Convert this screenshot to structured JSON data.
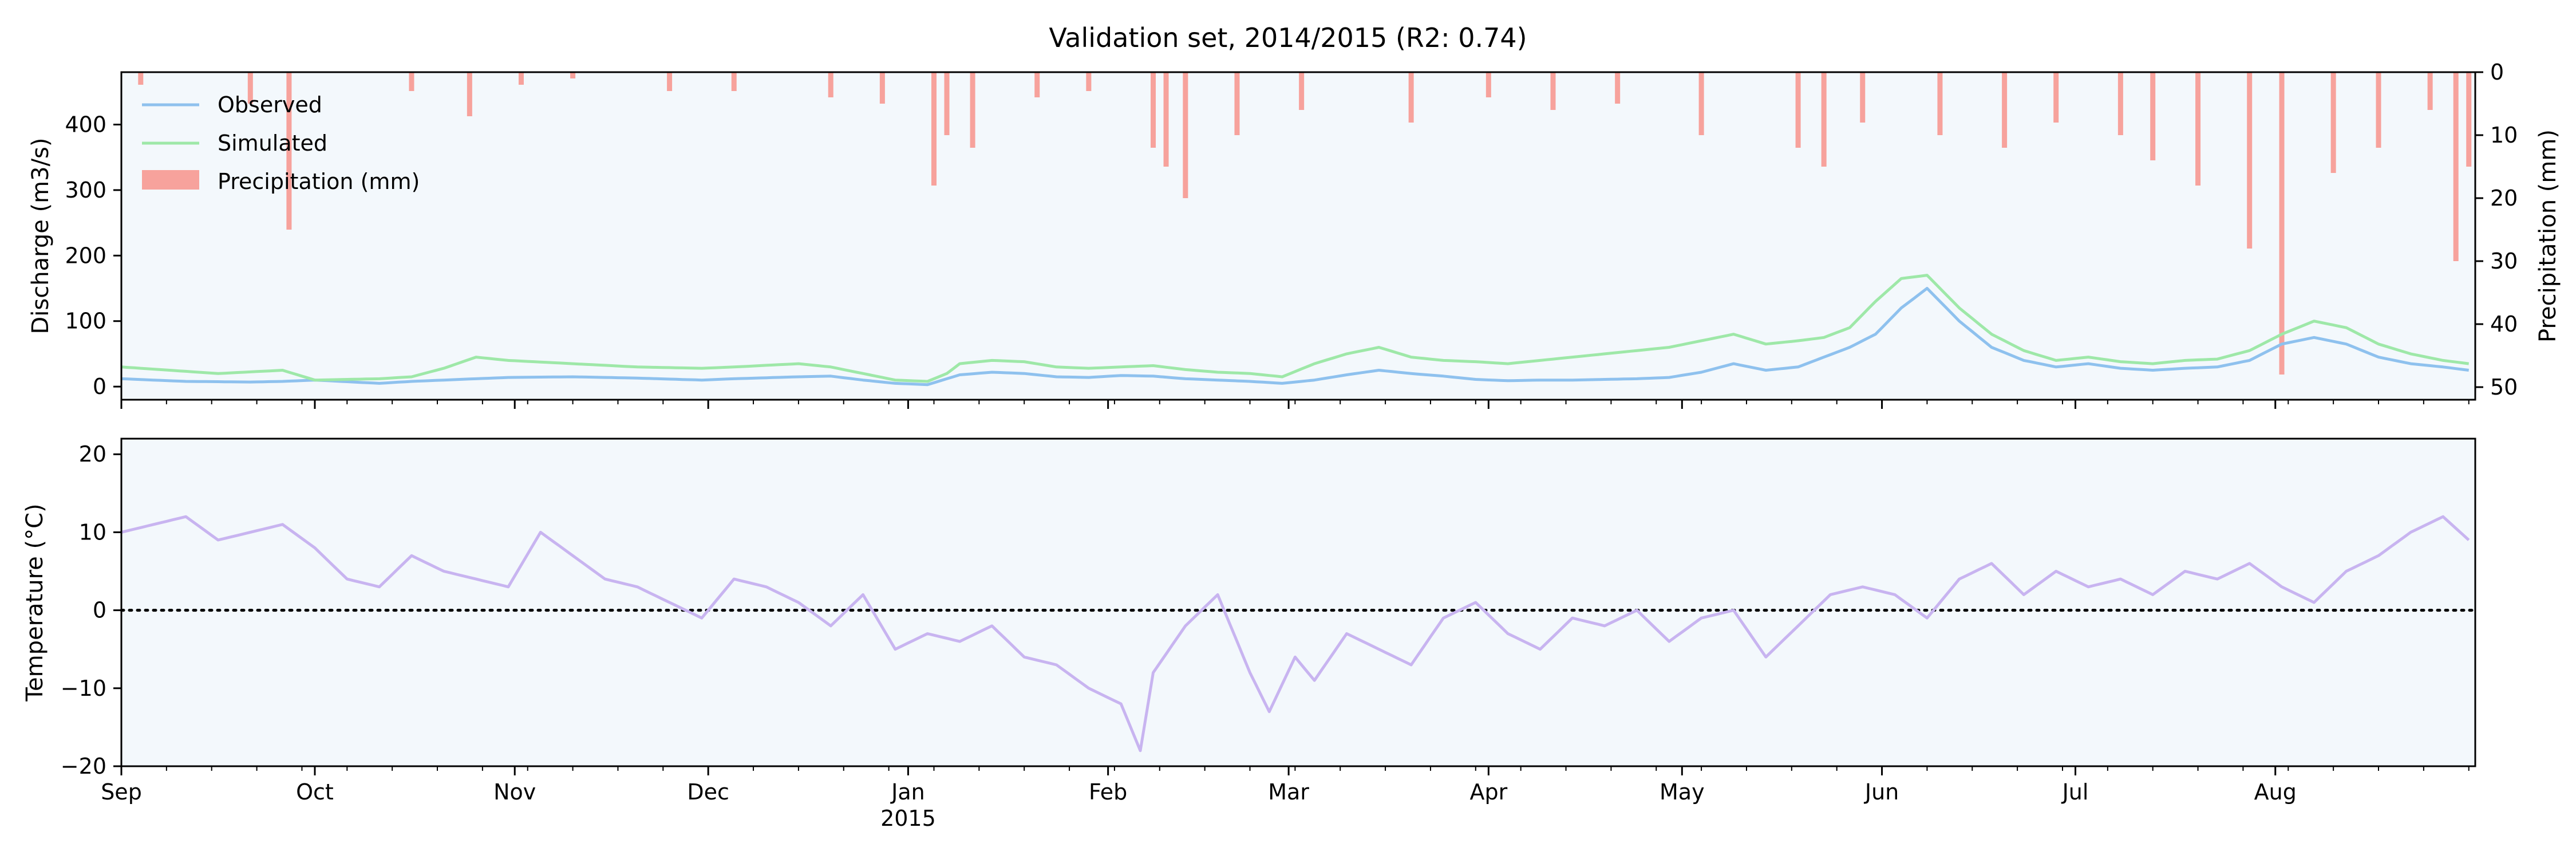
{
  "chart_data": [
    {
      "type": "line",
      "panel": "discharge",
      "title": "Validation set, 2014/2015 (R2: 0.74)",
      "ylabel": "Discharge (m3/s)",
      "ylim": [
        -20,
        480
      ],
      "yticks": [
        0,
        100,
        200,
        300,
        400
      ],
      "xlim_days": [
        0,
        364
      ],
      "x_start_date": "2014-09-01",
      "series": [
        {
          "name": "Observed",
          "color": "#8ec1ee",
          "key_points": [
            [
              0,
              12
            ],
            [
              10,
              8
            ],
            [
              20,
              7
            ],
            [
              25,
              8
            ],
            [
              30,
              10
            ],
            [
              40,
              5
            ],
            [
              45,
              8
            ],
            [
              50,
              10
            ],
            [
              55,
              12
            ],
            [
              60,
              14
            ],
            [
              70,
              15
            ],
            [
              80,
              13
            ],
            [
              90,
              10
            ],
            [
              95,
              12
            ],
            [
              105,
              15
            ],
            [
              110,
              16
            ],
            [
              115,
              10
            ],
            [
              120,
              5
            ],
            [
              125,
              3
            ],
            [
              128,
              12
            ],
            [
              130,
              18
            ],
            [
              135,
              22
            ],
            [
              140,
              20
            ],
            [
              145,
              15
            ],
            [
              150,
              14
            ],
            [
              155,
              17
            ],
            [
              160,
              16
            ],
            [
              165,
              12
            ],
            [
              170,
              10
            ],
            [
              175,
              8
            ],
            [
              180,
              5
            ],
            [
              185,
              10
            ],
            [
              190,
              18
            ],
            [
              195,
              25
            ],
            [
              200,
              20
            ],
            [
              205,
              16
            ],
            [
              210,
              11
            ],
            [
              215,
              9
            ],
            [
              220,
              10
            ],
            [
              225,
              10
            ],
            [
              230,
              11
            ],
            [
              235,
              12
            ],
            [
              240,
              14
            ],
            [
              245,
              22
            ],
            [
              250,
              35
            ],
            [
              255,
              25
            ],
            [
              260,
              30
            ],
            [
              264,
              45
            ],
            [
              268,
              60
            ],
            [
              272,
              80
            ],
            [
              276,
              120
            ],
            [
              280,
              150
            ],
            [
              285,
              100
            ],
            [
              290,
              60
            ],
            [
              295,
              40
            ],
            [
              300,
              30
            ],
            [
              305,
              35
            ],
            [
              310,
              28
            ],
            [
              315,
              25
            ],
            [
              320,
              28
            ],
            [
              325,
              30
            ],
            [
              330,
              40
            ],
            [
              335,
              65
            ],
            [
              340,
              75
            ],
            [
              345,
              65
            ],
            [
              350,
              45
            ],
            [
              355,
              35
            ],
            [
              360,
              30
            ],
            [
              364,
              25
            ]
          ]
        },
        {
          "name": "Simulated",
          "color": "#9ee8a8",
          "key_points": [
            [
              0,
              30
            ],
            [
              15,
              20
            ],
            [
              25,
              25
            ],
            [
              30,
              10
            ],
            [
              40,
              12
            ],
            [
              45,
              15
            ],
            [
              50,
              28
            ],
            [
              55,
              45
            ],
            [
              60,
              40
            ],
            [
              70,
              35
            ],
            [
              80,
              30
            ],
            [
              90,
              28
            ],
            [
              95,
              30
            ],
            [
              105,
              35
            ],
            [
              110,
              30
            ],
            [
              115,
              20
            ],
            [
              120,
              10
            ],
            [
              125,
              8
            ],
            [
              128,
              20
            ],
            [
              130,
              35
            ],
            [
              135,
              40
            ],
            [
              140,
              38
            ],
            [
              145,
              30
            ],
            [
              150,
              28
            ],
            [
              155,
              30
            ],
            [
              160,
              32
            ],
            [
              165,
              26
            ],
            [
              170,
              22
            ],
            [
              175,
              20
            ],
            [
              180,
              15
            ],
            [
              185,
              35
            ],
            [
              190,
              50
            ],
            [
              195,
              60
            ],
            [
              200,
              45
            ],
            [
              205,
              40
            ],
            [
              210,
              38
            ],
            [
              215,
              35
            ],
            [
              220,
              40
            ],
            [
              225,
              45
            ],
            [
              230,
              50
            ],
            [
              235,
              55
            ],
            [
              240,
              60
            ],
            [
              245,
              70
            ],
            [
              250,
              80
            ],
            [
              255,
              65
            ],
            [
              260,
              70
            ],
            [
              264,
              75
            ],
            [
              268,
              90
            ],
            [
              272,
              130
            ],
            [
              276,
              165
            ],
            [
              280,
              170
            ],
            [
              285,
              120
            ],
            [
              290,
              80
            ],
            [
              295,
              55
            ],
            [
              300,
              40
            ],
            [
              305,
              45
            ],
            [
              310,
              38
            ],
            [
              315,
              35
            ],
            [
              320,
              40
            ],
            [
              325,
              42
            ],
            [
              330,
              55
            ],
            [
              335,
              80
            ],
            [
              340,
              100
            ],
            [
              345,
              90
            ],
            [
              350,
              65
            ],
            [
              355,
              50
            ],
            [
              360,
              40
            ],
            [
              364,
              35
            ]
          ]
        }
      ],
      "precipitation": {
        "name": "Precipitation (mm)",
        "color": "#f7a29c",
        "ylabel": "Precipitation (mm)",
        "ylim_inverted": [
          0,
          52
        ],
        "yticks": [
          0,
          10,
          20,
          30,
          40,
          50
        ],
        "key_values": [
          [
            3,
            2
          ],
          [
            20,
            5
          ],
          [
            26,
            25
          ],
          [
            45,
            3
          ],
          [
            54,
            7
          ],
          [
            62,
            2
          ],
          [
            70,
            1
          ],
          [
            85,
            3
          ],
          [
            95,
            3
          ],
          [
            110,
            4
          ],
          [
            118,
            5
          ],
          [
            126,
            18
          ],
          [
            128,
            10
          ],
          [
            132,
            12
          ],
          [
            142,
            4
          ],
          [
            150,
            3
          ],
          [
            160,
            12
          ],
          [
            162,
            15
          ],
          [
            165,
            20
          ],
          [
            173,
            10
          ],
          [
            183,
            6
          ],
          [
            200,
            8
          ],
          [
            212,
            4
          ],
          [
            222,
            6
          ],
          [
            232,
            5
          ],
          [
            245,
            10
          ],
          [
            260,
            12
          ],
          [
            264,
            15
          ],
          [
            270,
            8
          ],
          [
            282,
            10
          ],
          [
            292,
            12
          ],
          [
            300,
            8
          ],
          [
            310,
            10
          ],
          [
            315,
            14
          ],
          [
            322,
            18
          ],
          [
            330,
            28
          ],
          [
            335,
            48
          ],
          [
            343,
            16
          ],
          [
            350,
            12
          ],
          [
            358,
            6
          ],
          [
            362,
            30
          ],
          [
            364,
            15
          ]
        ]
      }
    },
    {
      "type": "line",
      "panel": "temperature",
      "ylabel": "Temperature (°C)",
      "ylim": [
        -20,
        22
      ],
      "yticks": [
        -20,
        -10,
        0,
        10,
        20
      ],
      "zero_line": "dotted",
      "series": [
        {
          "name": "Temperature",
          "color": "#c8b4f0",
          "key_points": [
            [
              0,
              10
            ],
            [
              5,
              11
            ],
            [
              10,
              12
            ],
            [
              15,
              9
            ],
            [
              20,
              10
            ],
            [
              25,
              11
            ],
            [
              30,
              8
            ],
            [
              35,
              4
            ],
            [
              40,
              3
            ],
            [
              45,
              7
            ],
            [
              50,
              5
            ],
            [
              55,
              4
            ],
            [
              60,
              3
            ],
            [
              65,
              10
            ],
            [
              70,
              7
            ],
            [
              75,
              4
            ],
            [
              80,
              3
            ],
            [
              85,
              1
            ],
            [
              90,
              -1
            ],
            [
              95,
              4
            ],
            [
              100,
              3
            ],
            [
              105,
              1
            ],
            [
              110,
              -2
            ],
            [
              115,
              2
            ],
            [
              120,
              -5
            ],
            [
              125,
              -3
            ],
            [
              130,
              -4
            ],
            [
              135,
              -2
            ],
            [
              140,
              -6
            ],
            [
              145,
              -7
            ],
            [
              150,
              -10
            ],
            [
              155,
              -12
            ],
            [
              158,
              -18
            ],
            [
              160,
              -8
            ],
            [
              165,
              -2
            ],
            [
              170,
              2
            ],
            [
              175,
              -8
            ],
            [
              178,
              -13
            ],
            [
              182,
              -6
            ],
            [
              185,
              -9
            ],
            [
              190,
              -3
            ],
            [
              195,
              -5
            ],
            [
              200,
              -7
            ],
            [
              205,
              -1
            ],
            [
              210,
              1
            ],
            [
              215,
              -3
            ],
            [
              220,
              -5
            ],
            [
              225,
              -1
            ],
            [
              230,
              -2
            ],
            [
              235,
              0
            ],
            [
              240,
              -4
            ],
            [
              245,
              -1
            ],
            [
              250,
              0
            ],
            [
              255,
              -6
            ],
            [
              260,
              -2
            ],
            [
              265,
              2
            ],
            [
              270,
              3
            ],
            [
              275,
              2
            ],
            [
              280,
              -1
            ],
            [
              285,
              4
            ],
            [
              290,
              6
            ],
            [
              295,
              2
            ],
            [
              300,
              5
            ],
            [
              305,
              3
            ],
            [
              310,
              4
            ],
            [
              315,
              2
            ],
            [
              320,
              5
            ],
            [
              325,
              4
            ],
            [
              330,
              6
            ],
            [
              335,
              3
            ],
            [
              340,
              1
            ],
            [
              345,
              5
            ],
            [
              350,
              7
            ],
            [
              355,
              10
            ],
            [
              360,
              12
            ],
            [
              364,
              9
            ]
          ]
        }
      ]
    }
  ],
  "x_axis": {
    "month_labels": [
      "Sep",
      "Oct",
      "Nov",
      "Dec",
      "Jan",
      "Feb",
      "Mar",
      "Apr",
      "May",
      "Jun",
      "Jul",
      "Aug"
    ],
    "month_start_days": [
      0,
      30,
      61,
      91,
      122,
      153,
      181,
      212,
      242,
      273,
      303,
      334
    ],
    "year_label": "2015",
    "year_under_month": "Jan"
  }
}
